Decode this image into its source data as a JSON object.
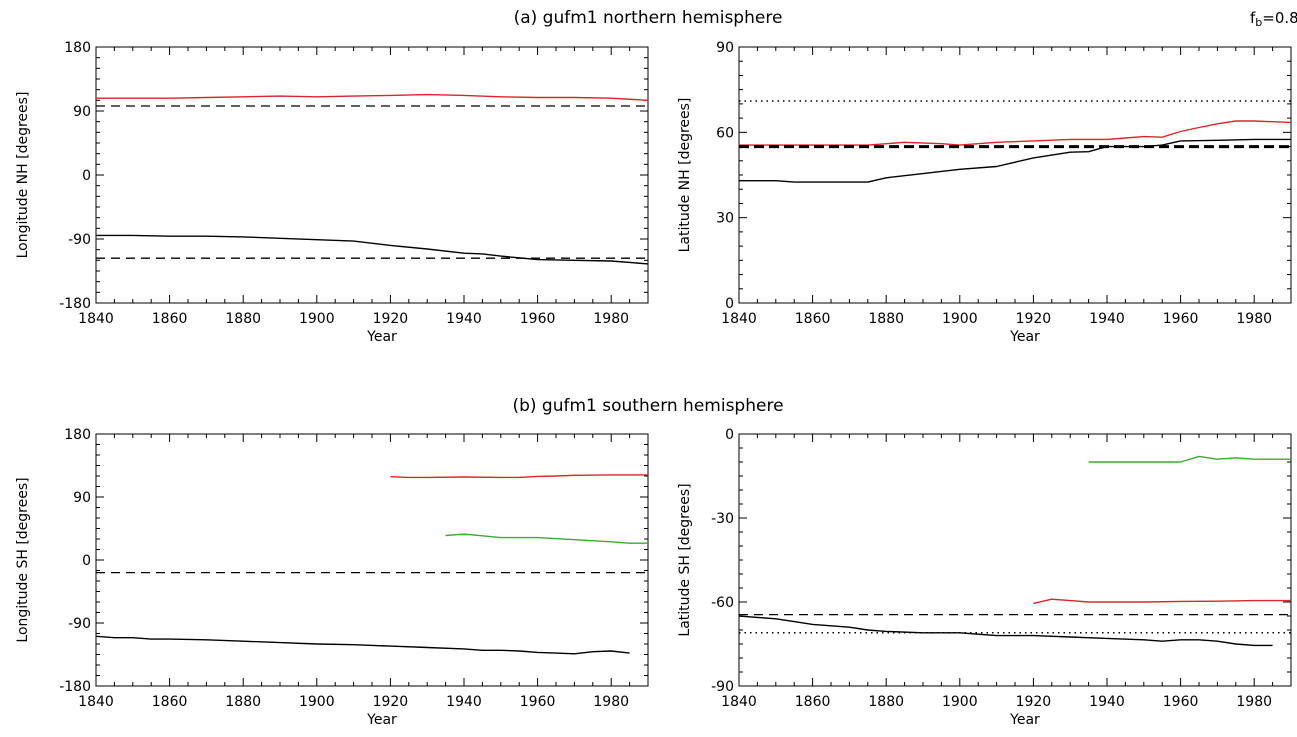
{
  "panel_titles": {
    "a": "(a) gufm1 northern hemisphere",
    "b": "(b) gufm1 southern hemisphere"
  },
  "annotation": "fₕ=0.8",
  "annotation_main": "f",
  "annotation_sub": "b",
  "annotation_tail": "=0.8",
  "colors": {
    "red": "#d9262b",
    "green": "#3aaa35",
    "black": "#000000"
  },
  "chart_data": [
    {
      "type": "line",
      "xlabel": "Year",
      "ylabel": "Longitude NH [degrees]",
      "xlim": [
        1840,
        1990
      ],
      "ylim": [
        -180,
        180
      ],
      "xticks": [
        1840,
        1860,
        1880,
        1900,
        1920,
        1940,
        1960,
        1980
      ],
      "yticks": [
        -180,
        -90,
        0,
        90,
        180
      ],
      "series": [
        {
          "color": "red",
          "style": "solid",
          "x": [
            1840,
            1850,
            1860,
            1870,
            1880,
            1890,
            1900,
            1910,
            1920,
            1930,
            1940,
            1950,
            1960,
            1970,
            1980,
            1990
          ],
          "y": [
            108,
            108,
            108,
            109,
            110,
            111,
            110,
            111,
            112,
            113,
            112,
            110,
            109,
            109,
            108,
            105
          ]
        },
        {
          "color": "black",
          "style": "solid",
          "x": [
            1840,
            1850,
            1860,
            1870,
            1880,
            1890,
            1900,
            1910,
            1920,
            1930,
            1940,
            1945,
            1950,
            1960,
            1970,
            1980,
            1990
          ],
          "y": [
            -85,
            -85,
            -86,
            -86,
            -87,
            -89,
            -91,
            -93,
            -99,
            -104,
            -110,
            -111,
            -114,
            -119,
            -120,
            -121,
            -125
          ]
        },
        {
          "color": "black",
          "style": "dashed",
          "x": [
            1840,
            1990
          ],
          "y": [
            97,
            97
          ]
        },
        {
          "color": "black",
          "style": "dashed",
          "x": [
            1840,
            1990
          ],
          "y": [
            -117,
            -117
          ]
        }
      ]
    },
    {
      "type": "line",
      "xlabel": "Year",
      "ylabel": "Latitude NH [degrees]",
      "xlim": [
        1840,
        1990
      ],
      "ylim": [
        0,
        90
      ],
      "xticks": [
        1840,
        1860,
        1880,
        1900,
        1920,
        1940,
        1960,
        1980
      ],
      "yticks": [
        0,
        30,
        60,
        90
      ],
      "series": [
        {
          "color": "red",
          "style": "solid",
          "x": [
            1840,
            1850,
            1860,
            1870,
            1875,
            1885,
            1895,
            1900,
            1910,
            1920,
            1930,
            1935,
            1940,
            1945,
            1950,
            1955,
            1960,
            1965,
            1970,
            1975,
            1980,
            1990
          ],
          "y": [
            55.5,
            55.5,
            55.5,
            55.5,
            55.5,
            56.5,
            56,
            55.5,
            56.5,
            57,
            57.5,
            57.5,
            57.5,
            58,
            58.5,
            58.3,
            60.3,
            61.7,
            63,
            64,
            64,
            63.5
          ]
        },
        {
          "color": "black",
          "style": "solid",
          "x": [
            1840,
            1850,
            1855,
            1865,
            1875,
            1880,
            1890,
            1900,
            1910,
            1920,
            1925,
            1930,
            1935,
            1940,
            1950,
            1955,
            1960,
            1970,
            1980,
            1990
          ],
          "y": [
            43,
            43,
            42.5,
            42.5,
            42.5,
            44,
            45.5,
            47,
            48,
            51,
            52,
            53,
            53.2,
            55,
            55,
            55.5,
            57,
            57.2,
            57.5,
            57.5
          ]
        },
        {
          "color": "black",
          "style": "dashed-thick",
          "x": [
            1840,
            1990
          ],
          "y": [
            55,
            55
          ]
        },
        {
          "color": "black",
          "style": "dotted",
          "x": [
            1840,
            1990
          ],
          "y": [
            71,
            71
          ]
        }
      ]
    },
    {
      "type": "line",
      "xlabel": "Year",
      "ylabel": "Longitude SH [degrees]",
      "xlim": [
        1840,
        1990
      ],
      "ylim": [
        -180,
        180
      ],
      "xticks": [
        1840,
        1860,
        1880,
        1900,
        1920,
        1940,
        1960,
        1980
      ],
      "yticks": [
        -180,
        -90,
        0,
        90,
        180
      ],
      "series": [
        {
          "color": "red",
          "style": "solid",
          "x": [
            1920,
            1925,
            1930,
            1940,
            1950,
            1955,
            1960,
            1965,
            1970,
            1980,
            1990
          ],
          "y": [
            119,
            118,
            118,
            118.5,
            118,
            118,
            119.5,
            120,
            121,
            121.5,
            121.5
          ]
        },
        {
          "color": "green",
          "style": "solid",
          "x": [
            1935,
            1940,
            1950,
            1955,
            1960,
            1970,
            1980,
            1985,
            1990
          ],
          "y": [
            35,
            37,
            32,
            32,
            32,
            29,
            26,
            24,
            24
          ]
        },
        {
          "color": "black",
          "style": "solid",
          "x": [
            1840,
            1845,
            1850,
            1855,
            1860,
            1870,
            1880,
            1890,
            1900,
            1910,
            1920,
            1930,
            1940,
            1945,
            1950,
            1955,
            1960,
            1965,
            1970,
            1975,
            1980,
            1985
          ],
          "y": [
            -109,
            -111,
            -111,
            -113,
            -113,
            -114,
            -116,
            -118,
            -120,
            -121,
            -123,
            -125,
            -127,
            -129,
            -129,
            -130,
            -132,
            -133,
            -134,
            -131,
            -130,
            -133
          ]
        },
        {
          "color": "black",
          "style": "dashed",
          "x": [
            1840,
            1990
          ],
          "y": [
            -18,
            -18
          ]
        }
      ]
    },
    {
      "type": "line",
      "xlabel": "Year",
      "ylabel": "Latitude SH [degrees]",
      "xlim": [
        1840,
        1990
      ],
      "ylim": [
        -90,
        0
      ],
      "xticks": [
        1840,
        1860,
        1880,
        1900,
        1920,
        1940,
        1960,
        1980
      ],
      "yticks": [
        -90,
        -60,
        -30,
        0
      ],
      "series": [
        {
          "color": "green",
          "style": "solid",
          "x": [
            1935,
            1940,
            1950,
            1960,
            1965,
            1970,
            1975,
            1980,
            1990
          ],
          "y": [
            -10,
            -10,
            -10,
            -10,
            -8,
            -9,
            -8.5,
            -9,
            -9
          ]
        },
        {
          "color": "red",
          "style": "solid",
          "x": [
            1920,
            1925,
            1930,
            1935,
            1940,
            1950,
            1960,
            1970,
            1980,
            1990
          ],
          "y": [
            -60.5,
            -59,
            -59.5,
            -60,
            -60,
            -60,
            -59.8,
            -59.7,
            -59.5,
            -59.5
          ]
        },
        {
          "color": "black",
          "style": "solid",
          "x": [
            1840,
            1845,
            1850,
            1855,
            1860,
            1870,
            1875,
            1880,
            1890,
            1900,
            1910,
            1920,
            1930,
            1940,
            1950,
            1955,
            1960,
            1965,
            1970,
            1975,
            1980,
            1985
          ],
          "y": [
            -65,
            -65.5,
            -66,
            -67,
            -68,
            -69,
            -70,
            -70.5,
            -71,
            -71,
            -72,
            -72,
            -72.5,
            -73,
            -73.5,
            -74,
            -73.5,
            -73.5,
            -74,
            -75,
            -75.5,
            -75.5
          ]
        },
        {
          "color": "black",
          "style": "dashed",
          "x": [
            1840,
            1990
          ],
          "y": [
            -64.5,
            -64.5
          ]
        },
        {
          "color": "black",
          "style": "dotted",
          "x": [
            1840,
            1990
          ],
          "y": [
            -71,
            -71
          ]
        }
      ]
    }
  ]
}
